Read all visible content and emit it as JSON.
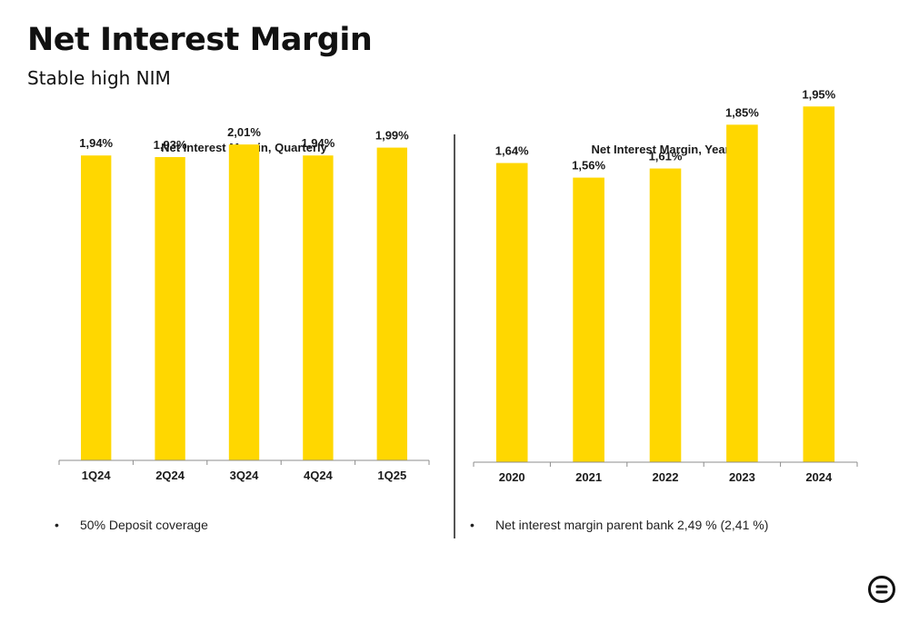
{
  "page": {
    "title": "Net Interest Margin",
    "subtitle": "Stable high NIM"
  },
  "notes": {
    "left": "50% Deposit coverage",
    "right": "Net interest margin parent bank 2,49 % (2,41 %)",
    "bullet": "•"
  },
  "colors": {
    "bar": "#FFD700",
    "axis": "#8c8c8c",
    "divider": "#555555"
  },
  "logo": {
    "icon": "equals-circle-icon"
  },
  "chart_data": [
    {
      "type": "bar",
      "title": "Net Interest Margin, Quarterly",
      "categories": [
        "1Q24",
        "2Q24",
        "3Q24",
        "4Q24",
        "1Q25"
      ],
      "values": [
        1.94,
        1.93,
        2.01,
        1.94,
        1.99
      ],
      "labels": [
        "1,94%",
        "1,93%",
        "2,01%",
        "1,94%",
        "1,99%"
      ],
      "ylim": [
        0,
        2.6
      ],
      "grid": false,
      "xlabel": "",
      "ylabel": ""
    },
    {
      "type": "bar",
      "title": "Net Interest Margin, Yearly",
      "categories": [
        "2020",
        "2021",
        "2022",
        "2023",
        "2024"
      ],
      "values": [
        1.64,
        1.56,
        1.61,
        1.85,
        1.95
      ],
      "labels": [
        "1,64%",
        "1,56%",
        "1,61%",
        "1,85%",
        "1,95%"
      ],
      "ylim": [
        0,
        2.24
      ],
      "grid": false,
      "xlabel": "",
      "ylabel": ""
    }
  ]
}
